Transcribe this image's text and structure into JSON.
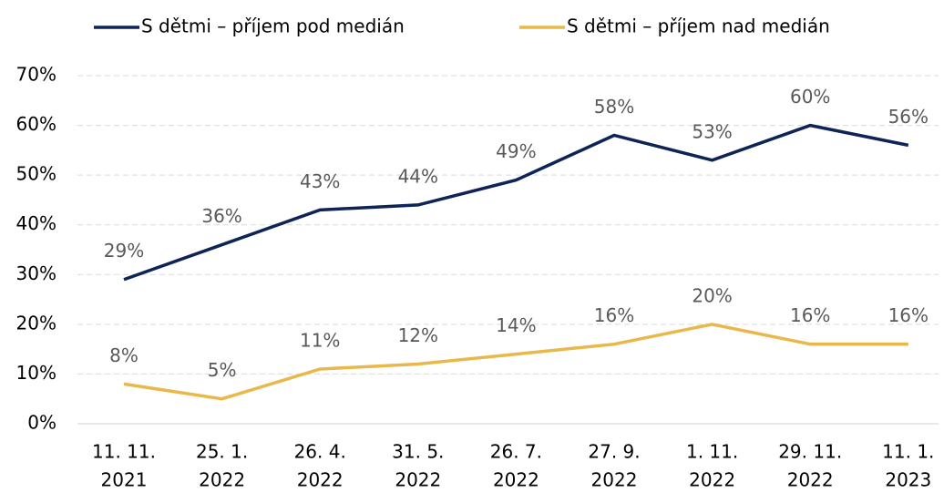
{
  "chart_data": {
    "type": "line",
    "categories": [
      [
        "11. 11.",
        "2021"
      ],
      [
        "25. 1.",
        "2022"
      ],
      [
        "26. 4.",
        "2022"
      ],
      [
        "31. 5.",
        "2022"
      ],
      [
        "26. 7.",
        "2022"
      ],
      [
        "27. 9.",
        "2022"
      ],
      [
        "1. 11.",
        "2022"
      ],
      [
        "29. 11.",
        "2022"
      ],
      [
        "11. 1.",
        "2023"
      ]
    ],
    "series": [
      {
        "name": "S dětmi – příjem pod medián",
        "color": "#0e2456",
        "values": [
          29,
          36,
          43,
          44,
          49,
          58,
          53,
          60,
          56
        ],
        "value_labels": [
          "29%",
          "36%",
          "43%",
          "44%",
          "49%",
          "58%",
          "53%",
          "60%",
          "56%"
        ]
      },
      {
        "name": "S dětmi – příjem nad medián",
        "color": "#e8b84b",
        "values": [
          8,
          5,
          11,
          12,
          14,
          16,
          20,
          16,
          16
        ],
        "value_labels": [
          "8%",
          "5%",
          "11%",
          "12%",
          "14%",
          "16%",
          "20%",
          "16%",
          "16%"
        ]
      }
    ],
    "ylim": [
      0,
      70
    ],
    "yticks": [
      {
        "value": 0,
        "label": "0%"
      },
      {
        "value": 10,
        "label": "10%"
      },
      {
        "value": 20,
        "label": "20%"
      },
      {
        "value": 30,
        "label": "30%"
      },
      {
        "value": 40,
        "label": "40%"
      },
      {
        "value": 50,
        "label": "50%"
      },
      {
        "value": 60,
        "label": "60%"
      },
      {
        "value": 70,
        "label": "70%"
      }
    ],
    "grid": true
  }
}
